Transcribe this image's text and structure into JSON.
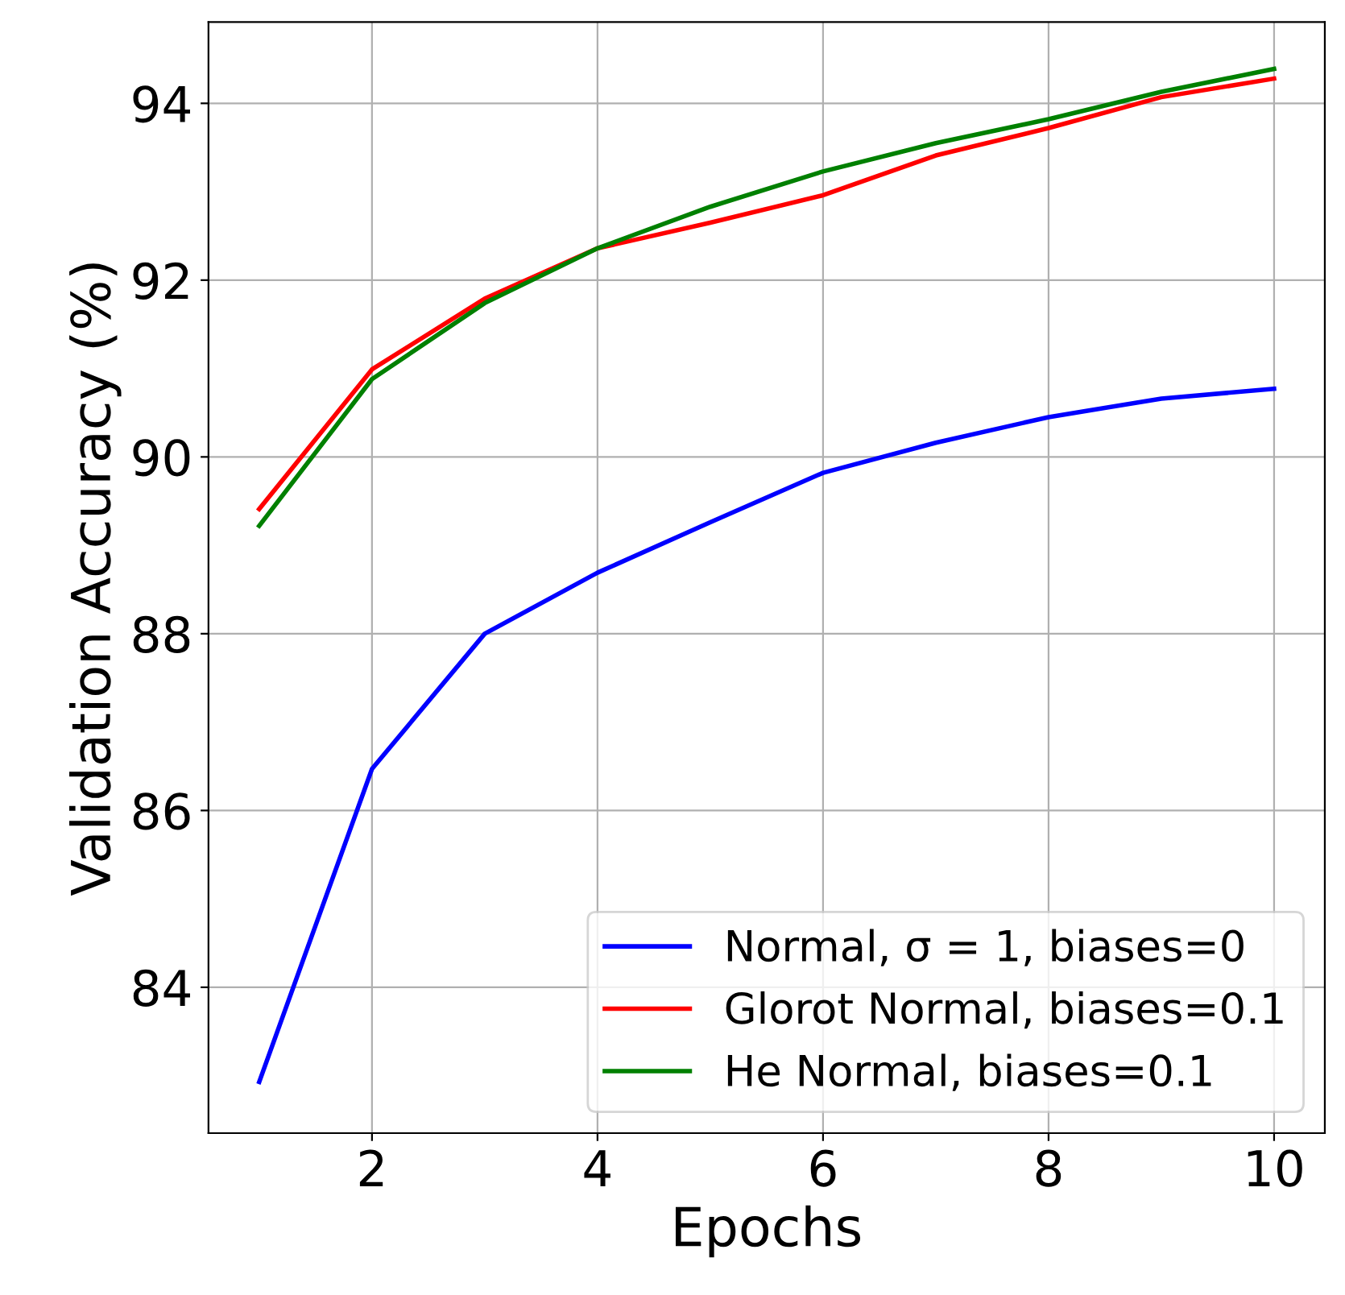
{
  "chart_data": {
    "type": "line",
    "xlabel": "Epochs",
    "ylabel": "Validation Accuracy (%)",
    "x": [
      1,
      2,
      3,
      4,
      5,
      6,
      7,
      8,
      9,
      10
    ],
    "series": [
      {
        "name": "Normal, σ = 1, biases=0",
        "color": "#0000ff",
        "values": [
          82.93,
          86.47,
          88.0,
          88.69,
          89.26,
          89.82,
          90.16,
          90.45,
          90.66,
          90.77
        ]
      },
      {
        "name": "Glorot Normal, biases=0.1",
        "color": "#ff0000",
        "values": [
          89.41,
          90.99,
          91.79,
          92.36,
          92.65,
          92.96,
          93.41,
          93.72,
          94.07,
          94.28
        ]
      },
      {
        "name": "He Normal, biases=0.1",
        "color": "#008000",
        "values": [
          89.22,
          90.88,
          91.74,
          92.36,
          92.83,
          93.23,
          93.55,
          93.82,
          94.13,
          94.39
        ]
      }
    ],
    "xlim": [
      0.55,
      10.45
    ],
    "ylim": [
      82.35,
      94.92
    ],
    "xticks": [
      2,
      4,
      6,
      8,
      10
    ],
    "yticks": [
      84,
      86,
      88,
      90,
      92,
      94
    ],
    "grid": true,
    "legend": "bottom right",
    "marker": "none",
    "line_style": "solid"
  }
}
